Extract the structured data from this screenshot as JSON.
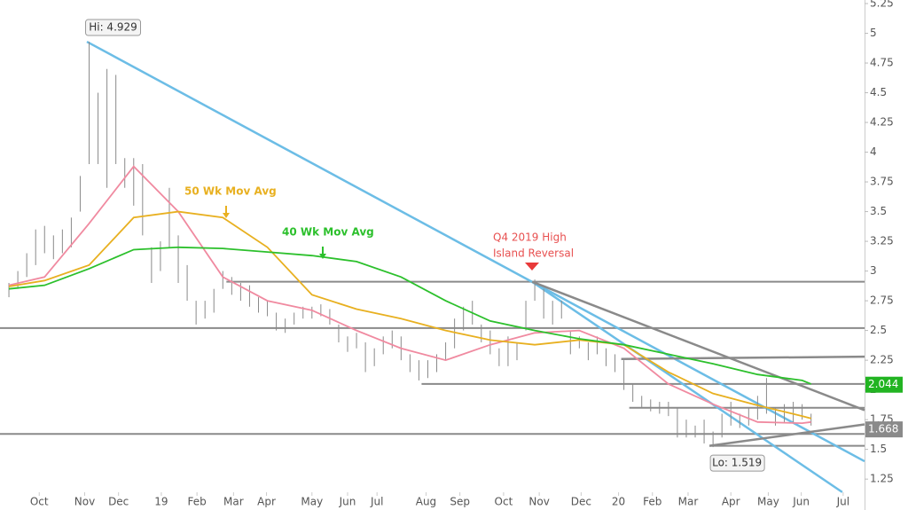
{
  "chart_data": {
    "type": "ohlc",
    "xlim": [
      0,
      97
    ],
    "ylim": [
      0.99,
      5.28
    ],
    "xticks": [
      {
        "value": 4.4,
        "label": "Oct"
      },
      {
        "value": 9.5,
        "label": "Nov"
      },
      {
        "value": 13.3,
        "label": "Dec"
      },
      {
        "value": 18.1,
        "label": "19"
      },
      {
        "value": 22.1,
        "label": "Feb"
      },
      {
        "value": 26.2,
        "label": "Mar"
      },
      {
        "value": 29.9,
        "label": "Apr"
      },
      {
        "value": 35,
        "label": "May"
      },
      {
        "value": 39,
        "label": "Jun"
      },
      {
        "value": 42.3,
        "label": "Jul"
      },
      {
        "value": 47.8,
        "label": "Aug"
      },
      {
        "value": 51.6,
        "label": "Sep"
      },
      {
        "value": 56.5,
        "label": "Oct"
      },
      {
        "value": 60.5,
        "label": "Nov"
      },
      {
        "value": 65.2,
        "label": "Dec"
      },
      {
        "value": 69.4,
        "label": "20"
      },
      {
        "value": 73.2,
        "label": "Feb"
      },
      {
        "value": 77.2,
        "label": "Mar"
      },
      {
        "value": 82,
        "label": "Apr"
      },
      {
        "value": 86.2,
        "label": "May"
      },
      {
        "value": 89.9,
        "label": "Jun"
      },
      {
        "value": 94.6,
        "label": "Jul"
      }
    ],
    "yticks": [
      1.25,
      1.5,
      1.75,
      2,
      2.25,
      2.5,
      2.75,
      3,
      3.25,
      3.5,
      3.75,
      4,
      4.25,
      4.5,
      4.75,
      5,
      5.25
    ],
    "bars": {
      "color": "#8a8a8a",
      "x": [
        1,
        2,
        3,
        4,
        5,
        6,
        7,
        8,
        9,
        10,
        11,
        12,
        13,
        14,
        15,
        16,
        17,
        18,
        19,
        20,
        21,
        22,
        23,
        24,
        25,
        26,
        27,
        28,
        29,
        30,
        31,
        32,
        33,
        34,
        35,
        36,
        37,
        38,
        39,
        40,
        41,
        42,
        43,
        44,
        45,
        46,
        47,
        48,
        49,
        50,
        51,
        52,
        53,
        54,
        55,
        56,
        57,
        58,
        59,
        60,
        61,
        62,
        63,
        64,
        65,
        66,
        67,
        68,
        69,
        70,
        71,
        72,
        73,
        74,
        75,
        76,
        77,
        78,
        79,
        80,
        81,
        82,
        83,
        84,
        85,
        86,
        87,
        88,
        89,
        90,
        91
      ],
      "high": [
        2.9,
        3.0,
        3.15,
        3.35,
        3.38,
        3.3,
        3.35,
        3.45,
        3.8,
        4.929,
        4.5,
        4.7,
        4.65,
        3.95,
        3.95,
        3.9,
        3.2,
        3.25,
        3.7,
        3.3,
        3.05,
        2.75,
        2.75,
        2.85,
        3.0,
        2.95,
        2.9,
        2.88,
        2.78,
        2.75,
        2.65,
        2.6,
        2.65,
        2.7,
        2.7,
        2.72,
        2.68,
        2.55,
        2.45,
        2.48,
        2.4,
        2.35,
        2.45,
        2.5,
        2.45,
        2.3,
        2.25,
        2.25,
        2.3,
        2.4,
        2.6,
        2.7,
        2.75,
        2.55,
        2.5,
        2.35,
        2.45,
        2.4,
        2.75,
        2.929,
        2.85,
        2.75,
        2.75,
        2.5,
        2.45,
        2.4,
        2.45,
        2.35,
        2.3,
        2.25,
        2.05,
        1.95,
        1.92,
        1.9,
        1.9,
        1.85,
        1.75,
        1.7,
        1.75,
        1.65,
        1.8,
        1.9,
        1.8,
        1.85,
        1.95,
        2.1,
        1.85,
        1.88,
        1.9,
        1.88,
        1.8
      ],
      "low": [
        2.78,
        2.85,
        2.95,
        3.05,
        3.15,
        3.1,
        3.15,
        3.2,
        3.5,
        3.9,
        3.9,
        3.7,
        3.9,
        3.7,
        3.55,
        3.3,
        2.9,
        3.0,
        3.2,
        2.9,
        2.75,
        2.55,
        2.6,
        2.65,
        2.85,
        2.8,
        2.75,
        2.7,
        2.65,
        2.62,
        2.5,
        2.48,
        2.55,
        2.6,
        2.6,
        2.62,
        2.55,
        2.4,
        2.32,
        2.35,
        2.15,
        2.2,
        2.3,
        2.35,
        2.25,
        2.15,
        2.08,
        2.1,
        2.15,
        2.25,
        2.35,
        2.5,
        2.55,
        2.4,
        2.3,
        2.2,
        2.2,
        2.25,
        2.5,
        2.75,
        2.6,
        2.55,
        2.6,
        2.3,
        2.35,
        2.25,
        2.3,
        2.2,
        2.15,
        2.0,
        1.9,
        1.85,
        1.82,
        1.8,
        1.78,
        1.6,
        1.6,
        1.6,
        1.55,
        1.519,
        1.6,
        1.7,
        1.68,
        1.7,
        1.75,
        1.8,
        1.7,
        1.72,
        1.72,
        1.75,
        1.7
      ]
    },
    "series": [
      {
        "color": "#f08aa0",
        "x": [
          1,
          5,
          10,
          15,
          20,
          25,
          30,
          35,
          40,
          45,
          50,
          55,
          60,
          65,
          70,
          75,
          80,
          85,
          90,
          91
        ],
        "values": [
          2.88,
          2.95,
          3.4,
          3.88,
          3.5,
          2.95,
          2.75,
          2.67,
          2.5,
          2.35,
          2.25,
          2.38,
          2.48,
          2.5,
          2.35,
          2.05,
          1.88,
          1.73,
          1.72,
          1.73
        ]
      },
      {
        "name": "50 Wk Mov Avg",
        "color": "#e8b020",
        "x": [
          1,
          5,
          10,
          15,
          20,
          25,
          30,
          35,
          40,
          45,
          50,
          55,
          60,
          65,
          70,
          75,
          80,
          85,
          90,
          91
        ],
        "values": [
          2.87,
          2.92,
          3.05,
          3.45,
          3.5,
          3.45,
          3.2,
          2.8,
          2.68,
          2.6,
          2.5,
          2.42,
          2.38,
          2.42,
          2.38,
          2.15,
          1.97,
          1.87,
          1.78,
          1.76
        ]
      },
      {
        "name": "40 Wk Mov Avg",
        "color": "#2cc02c",
        "x": [
          1,
          5,
          10,
          15,
          20,
          25,
          30,
          35,
          40,
          45,
          50,
          55,
          60,
          65,
          70,
          75,
          80,
          85,
          90,
          91
        ],
        "values": [
          2.85,
          2.88,
          3.02,
          3.18,
          3.2,
          3.19,
          3.16,
          3.13,
          3.08,
          2.95,
          2.75,
          2.58,
          2.5,
          2.43,
          2.38,
          2.3,
          2.22,
          2.13,
          2.08,
          2.05
        ]
      }
    ],
    "levels": [
      {
        "value": 2.91,
        "from": 25.4
      },
      {
        "value": 2.52,
        "from": 0
      },
      {
        "value": 2.05,
        "from": 47.3
      },
      {
        "value": 1.85,
        "from": 70.6
      },
      {
        "value": 1.63,
        "from": 0
      },
      {
        "value": 1.53,
        "from": 79.6
      }
    ],
    "trendlines": [
      {
        "color": "#6cbde6",
        "x": [
          9.75,
          97
        ],
        "y": [
          4.929,
          1.4
        ]
      },
      {
        "color": "#6cbde6",
        "x": [
          59.7,
          94.5
        ],
        "y": [
          2.91,
          1.14
        ]
      },
      {
        "color": "#8a8a8a",
        "x": [
          59.7,
          97
        ],
        "y": [
          2.91,
          1.83
        ]
      },
      {
        "color": "#8a8a8a",
        "x": [
          69.7,
          97
        ],
        "y": [
          2.26,
          2.28
        ]
      },
      {
        "color": "#8a8a8a",
        "x": [
          79.6,
          97
        ],
        "y": [
          1.53,
          1.71
        ]
      }
    ],
    "price_tags": [
      {
        "value": 2.044,
        "color": "#22b422"
      },
      {
        "value": 1.668,
        "color": "#8a8a8a"
      }
    ],
    "hi_label": "Hi: 4.929",
    "lo_label": "Lo: 1.519",
    "annotation": [
      "Q4 2019 High",
      "Island Reversal"
    ]
  }
}
